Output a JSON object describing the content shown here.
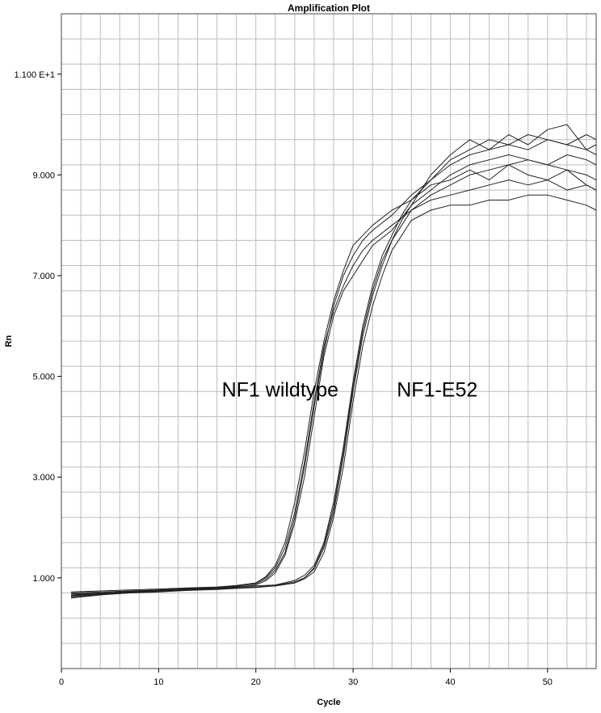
{
  "chart_data": {
    "type": "line",
    "title": "Amplification Plot",
    "xlabel": "Cycle",
    "ylabel": "Rn",
    "xlim": [
      0,
      55
    ],
    "ylim": [
      -0.8,
      12.2
    ],
    "grid": true,
    "x_ticks": [
      0,
      10,
      20,
      30,
      40,
      50
    ],
    "x_tick_labels": [
      "0",
      "10",
      "20",
      "30",
      "40",
      "50"
    ],
    "y_ticks": [
      1,
      3,
      5,
      7,
      9,
      11
    ],
    "y_tick_labels": [
      "1.000",
      "3.000",
      "5.000",
      "7.000",
      "9.000",
      "1.100 E+1"
    ],
    "annotations": [
      {
        "text": "NF1 wildtype",
        "x": 16.5,
        "y": 4.6
      },
      {
        "text": "NF1-E52",
        "x": 34.5,
        "y": 4.6
      }
    ],
    "series": [
      {
        "color": "#222222",
        "x": [
          1,
          4,
          7,
          10,
          13,
          16,
          18,
          20,
          21,
          22,
          23,
          24,
          25,
          26,
          27,
          28,
          29,
          30,
          31,
          32,
          34,
          36,
          38,
          40,
          42,
          44,
          46,
          48,
          50,
          52,
          54,
          55
        ],
        "y": [
          0.72,
          0.74,
          0.76,
          0.78,
          0.8,
          0.82,
          0.85,
          0.9,
          1.0,
          1.2,
          1.6,
          2.3,
          3.3,
          4.5,
          5.6,
          6.3,
          6.8,
          7.2,
          7.5,
          7.7,
          8.0,
          8.3,
          8.6,
          8.8,
          9.0,
          9.1,
          9.2,
          9.3,
          9.2,
          9.4,
          9.3,
          9.2
        ]
      },
      {
        "color": "#222222",
        "x": [
          1,
          4,
          7,
          10,
          13,
          16,
          18,
          20,
          21,
          22,
          23,
          24,
          25,
          26,
          27,
          28,
          29,
          30,
          31,
          32,
          34,
          36,
          38,
          40,
          42,
          44,
          46,
          48,
          50,
          52,
          54,
          55
        ],
        "y": [
          0.68,
          0.7,
          0.73,
          0.76,
          0.79,
          0.81,
          0.84,
          0.88,
          0.97,
          1.15,
          1.5,
          2.2,
          3.2,
          4.4,
          5.5,
          6.4,
          7.0,
          7.4,
          7.7,
          7.9,
          8.2,
          8.6,
          8.9,
          9.2,
          9.4,
          9.5,
          9.6,
          9.5,
          9.7,
          9.6,
          9.8,
          9.7
        ]
      },
      {
        "color": "#222222",
        "x": [
          1,
          4,
          7,
          10,
          13,
          16,
          18,
          20,
          21,
          22,
          23,
          24,
          25,
          26,
          27,
          28,
          29,
          30,
          31,
          32,
          34,
          36,
          38,
          40,
          42,
          44,
          46,
          48,
          50,
          52,
          54,
          55
        ],
        "y": [
          0.65,
          0.69,
          0.72,
          0.75,
          0.78,
          0.8,
          0.83,
          0.9,
          1.02,
          1.25,
          1.7,
          2.5,
          3.5,
          4.7,
          5.7,
          6.5,
          7.1,
          7.6,
          7.8,
          8.0,
          8.3,
          8.5,
          8.8,
          8.9,
          9.1,
          8.9,
          9.2,
          9.0,
          8.9,
          9.1,
          8.8,
          8.7
        ]
      },
      {
        "color": "#222222",
        "x": [
          1,
          4,
          7,
          10,
          13,
          16,
          18,
          20,
          21,
          22,
          23,
          24,
          25,
          26,
          27,
          28,
          29,
          30,
          31,
          32,
          34,
          36,
          38,
          40,
          42,
          44,
          46,
          48,
          50,
          52,
          54,
          55
        ],
        "y": [
          0.62,
          0.67,
          0.7,
          0.74,
          0.77,
          0.79,
          0.82,
          0.86,
          0.94,
          1.1,
          1.45,
          2.1,
          3.0,
          4.2,
          5.4,
          6.2,
          6.7,
          7.0,
          7.3,
          7.6,
          7.9,
          8.4,
          9.0,
          9.4,
          9.7,
          9.5,
          9.8,
          9.6,
          9.9,
          10.0,
          9.5,
          9.6
        ]
      },
      {
        "color": "#222222",
        "x": [
          1,
          4,
          7,
          10,
          13,
          16,
          18,
          20,
          22,
          24,
          25,
          26,
          27,
          28,
          29,
          30,
          31,
          32,
          33,
          34,
          35,
          36,
          38,
          40,
          42,
          44,
          46,
          48,
          50,
          52,
          54,
          55
        ],
        "y": [
          0.7,
          0.72,
          0.74,
          0.76,
          0.78,
          0.8,
          0.82,
          0.84,
          0.86,
          0.95,
          1.05,
          1.25,
          1.7,
          2.5,
          3.6,
          4.9,
          6.0,
          6.8,
          7.4,
          7.8,
          8.2,
          8.5,
          8.9,
          9.3,
          9.5,
          9.7,
          9.6,
          9.8,
          9.7,
          9.6,
          9.5,
          9.4
        ]
      },
      {
        "color": "#222222",
        "x": [
          1,
          4,
          7,
          10,
          13,
          16,
          18,
          20,
          22,
          24,
          25,
          26,
          27,
          28,
          29,
          30,
          31,
          32,
          33,
          34,
          35,
          36,
          38,
          40,
          42,
          44,
          46,
          48,
          50,
          52,
          54,
          55
        ],
        "y": [
          0.66,
          0.7,
          0.72,
          0.74,
          0.76,
          0.78,
          0.8,
          0.82,
          0.85,
          0.92,
          1.0,
          1.18,
          1.6,
          2.3,
          3.4,
          4.7,
          5.8,
          6.6,
          7.2,
          7.7,
          8.0,
          8.3,
          8.5,
          8.6,
          8.7,
          8.8,
          8.9,
          8.8,
          8.9,
          8.7,
          8.8,
          8.7
        ]
      },
      {
        "color": "#222222",
        "x": [
          1,
          4,
          7,
          10,
          13,
          16,
          18,
          20,
          22,
          24,
          25,
          26,
          27,
          28,
          29,
          30,
          31,
          32,
          33,
          34,
          35,
          36,
          38,
          40,
          42,
          44,
          46,
          48,
          50,
          52,
          54,
          55
        ],
        "y": [
          0.6,
          0.66,
          0.7,
          0.72,
          0.75,
          0.77,
          0.79,
          0.81,
          0.84,
          0.9,
          0.98,
          1.12,
          1.5,
          2.2,
          3.2,
          4.5,
          5.6,
          6.4,
          7.0,
          7.5,
          7.8,
          8.1,
          8.3,
          8.4,
          8.4,
          8.5,
          8.5,
          8.6,
          8.6,
          8.5,
          8.4,
          8.3
        ]
      },
      {
        "color": "#222222",
        "x": [
          1,
          4,
          7,
          10,
          13,
          16,
          18,
          20,
          22,
          24,
          25,
          26,
          27,
          28,
          29,
          30,
          31,
          32,
          33,
          34,
          35,
          36,
          38,
          40,
          42,
          44,
          46,
          48,
          50,
          52,
          54,
          55
        ],
        "y": [
          0.64,
          0.68,
          0.71,
          0.73,
          0.76,
          0.78,
          0.8,
          0.82,
          0.84,
          0.9,
          1.0,
          1.2,
          1.65,
          2.4,
          3.5,
          4.8,
          5.9,
          6.7,
          7.3,
          7.7,
          8.1,
          8.4,
          8.7,
          9.0,
          9.2,
          9.3,
          9.4,
          9.3,
          9.2,
          9.1,
          9.0,
          8.9
        ]
      }
    ]
  }
}
